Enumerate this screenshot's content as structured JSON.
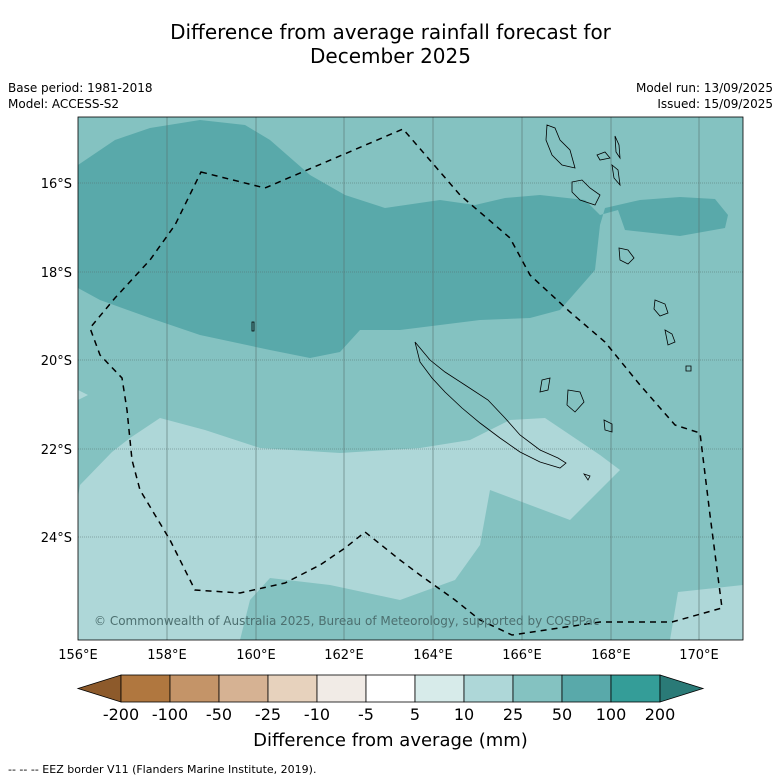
{
  "title": {
    "line1": "Difference from average rainfall forecast for",
    "line2": "December 2025"
  },
  "meta": {
    "base_period": "Base period: 1981-2018",
    "model": "Model: ACCESS-S2",
    "model_run": "Model run: 13/09/2025",
    "issued": "Issued: 15/09/2025"
  },
  "map": {
    "copyright": "© Commonwealth of Australia 2025, Bureau of Meteorology, supported by COSPPac",
    "lat_labels": [
      "16°S",
      "18°S",
      "20°S",
      "22°S",
      "24°S"
    ],
    "lon_labels": [
      "156°E",
      "158°E",
      "160°E",
      "162°E",
      "164°E",
      "166°E",
      "168°E",
      "170°E"
    ],
    "colors": {
      "c10_25": "#aed7d8",
      "c25_50": "#84c2c1",
      "c50_100": "#59a9aa"
    }
  },
  "colorbar": {
    "title": "Difference from average (mm)",
    "labels": [
      "-200",
      "-100",
      "-50",
      "-25",
      "-10",
      "-5",
      "5",
      "10",
      "25",
      "50",
      "100",
      "200"
    ],
    "colors": [
      "#8d5a2b",
      "#b0773f",
      "#c49468",
      "#d6b293",
      "#e7d2bd",
      "#f1ebe6",
      "#ffffff",
      "#d7ebea",
      "#aed7d8",
      "#84c2c1",
      "#59a9aa",
      "#349d98",
      "#2a7a77"
    ]
  },
  "legend": {
    "eez": "--  --  -- EEZ border V11 (Flanders Marine Institute, 2019)."
  }
}
